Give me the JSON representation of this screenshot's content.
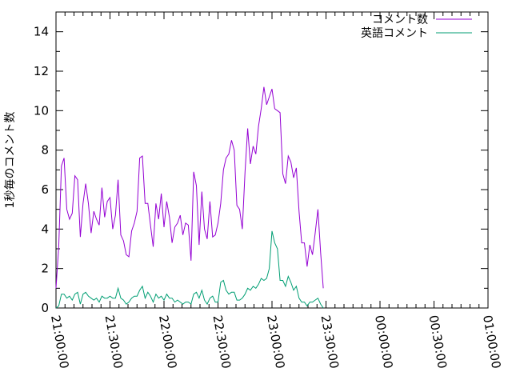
{
  "chart_data": {
    "type": "line",
    "title": "",
    "xlabel": "",
    "ylabel": "1秒毎のコメント数",
    "ylim": [
      0,
      15
    ],
    "xlim": [
      "21:00:00",
      "01:00:00"
    ],
    "x_ticks": [
      "21:00:00",
      "21:30:00",
      "22:00:00",
      "22:30:00",
      "23:00:00",
      "23:30:00",
      "00:00:00",
      "00:30:00",
      "01:00:00"
    ],
    "y_ticks": [
      0,
      2,
      4,
      6,
      8,
      10,
      12,
      14
    ],
    "legend_position": "top-right",
    "grid": false,
    "series": [
      {
        "name": "コメント数",
        "color": "#9400d3",
        "points": [
          [
            "21:00:00",
            1.0
          ],
          [
            "21:01:30",
            3.1
          ],
          [
            "21:03:00",
            7.2
          ],
          [
            "21:04:30",
            7.6
          ],
          [
            "21:06:00",
            5.0
          ],
          [
            "21:07:30",
            4.5
          ],
          [
            "21:09:00",
            4.8
          ],
          [
            "21:10:30",
            6.7
          ],
          [
            "21:12:00",
            6.5
          ],
          [
            "21:13:30",
            3.6
          ],
          [
            "21:15:00",
            5.3
          ],
          [
            "21:16:30",
            6.3
          ],
          [
            "21:18:00",
            5.3
          ],
          [
            "21:19:30",
            3.8
          ],
          [
            "21:21:00",
            4.9
          ],
          [
            "21:22:30",
            4.5
          ],
          [
            "21:24:00",
            4.2
          ],
          [
            "21:25:30",
            6.1
          ],
          [
            "21:27:00",
            4.6
          ],
          [
            "21:28:30",
            5.4
          ],
          [
            "21:30:00",
            5.6
          ],
          [
            "21:31:30",
            4.0
          ],
          [
            "21:33:00",
            4.7
          ],
          [
            "21:34:30",
            6.5
          ],
          [
            "21:36:00",
            3.7
          ],
          [
            "21:37:30",
            3.4
          ],
          [
            "21:39:00",
            2.7
          ],
          [
            "21:40:30",
            2.6
          ],
          [
            "21:42:00",
            3.9
          ],
          [
            "21:43:30",
            4.3
          ],
          [
            "21:45:00",
            4.9
          ],
          [
            "21:46:30",
            7.6
          ],
          [
            "21:48:00",
            7.7
          ],
          [
            "21:49:30",
            5.3
          ],
          [
            "21:51:00",
            5.3
          ],
          [
            "21:52:30",
            4.2
          ],
          [
            "21:54:00",
            3.1
          ],
          [
            "21:55:30",
            5.3
          ],
          [
            "21:57:00",
            4.5
          ],
          [
            "21:58:30",
            5.8
          ],
          [
            "22:00:00",
            4.1
          ],
          [
            "22:01:30",
            5.4
          ],
          [
            "22:03:00",
            4.6
          ],
          [
            "22:04:30",
            3.3
          ],
          [
            "22:06:00",
            4.1
          ],
          [
            "22:07:30",
            4.3
          ],
          [
            "22:09:00",
            4.7
          ],
          [
            "22:10:30",
            3.7
          ],
          [
            "22:12:00",
            4.3
          ],
          [
            "22:13:30",
            4.2
          ],
          [
            "22:15:00",
            2.4
          ],
          [
            "22:16:30",
            6.9
          ],
          [
            "22:18:00",
            6.2
          ],
          [
            "22:19:30",
            3.2
          ],
          [
            "22:21:00",
            5.9
          ],
          [
            "22:22:30",
            4.0
          ],
          [
            "22:24:00",
            3.5
          ],
          [
            "22:25:30",
            5.4
          ],
          [
            "22:27:00",
            3.6
          ],
          [
            "22:28:30",
            3.7
          ],
          [
            "22:30:00",
            4.3
          ],
          [
            "22:31:30",
            5.3
          ],
          [
            "22:33:00",
            7.0
          ],
          [
            "22:34:30",
            7.6
          ],
          [
            "22:36:00",
            7.8
          ],
          [
            "22:37:30",
            8.5
          ],
          [
            "22:39:00",
            8.0
          ],
          [
            "22:40:30",
            5.2
          ],
          [
            "22:42:00",
            5.0
          ],
          [
            "22:43:30",
            4.0
          ],
          [
            "22:45:00",
            6.9
          ],
          [
            "22:46:30",
            9.1
          ],
          [
            "22:48:00",
            7.3
          ],
          [
            "22:49:30",
            8.2
          ],
          [
            "22:51:00",
            7.8
          ],
          [
            "22:52:30",
            9.2
          ],
          [
            "22:54:00",
            10.1
          ],
          [
            "22:55:30",
            11.2
          ],
          [
            "22:57:00",
            10.3
          ],
          [
            "22:58:30",
            10.7
          ],
          [
            "23:00:00",
            11.1
          ],
          [
            "23:01:30",
            10.1
          ],
          [
            "23:03:00",
            10.0
          ],
          [
            "23:04:30",
            9.9
          ],
          [
            "23:06:00",
            6.8
          ],
          [
            "23:07:30",
            6.3
          ],
          [
            "23:09:00",
            7.7
          ],
          [
            "23:10:30",
            7.4
          ],
          [
            "23:12:00",
            6.6
          ],
          [
            "23:13:30",
            7.1
          ],
          [
            "23:15:00",
            4.9
          ],
          [
            "23:16:30",
            3.3
          ],
          [
            "23:18:00",
            3.3
          ],
          [
            "23:19:30",
            2.1
          ],
          [
            "23:21:00",
            3.2
          ],
          [
            "23:22:30",
            2.7
          ],
          [
            "23:24:00",
            3.8
          ],
          [
            "23:25:30",
            5.0
          ],
          [
            "23:27:00",
            2.8
          ],
          [
            "23:28:30",
            1.0
          ]
        ]
      },
      {
        "name": "英語コメント",
        "color": "#009e73",
        "points": [
          [
            "21:00:00",
            0.0
          ],
          [
            "21:01:30",
            0.1
          ],
          [
            "21:03:00",
            0.7
          ],
          [
            "21:04:30",
            0.7
          ],
          [
            "21:06:00",
            0.5
          ],
          [
            "21:07:30",
            0.6
          ],
          [
            "21:09:00",
            0.4
          ],
          [
            "21:10:30",
            0.7
          ],
          [
            "21:12:00",
            0.8
          ],
          [
            "21:13:30",
            0.2
          ],
          [
            "21:15:00",
            0.7
          ],
          [
            "21:16:30",
            0.8
          ],
          [
            "21:18:00",
            0.6
          ],
          [
            "21:19:30",
            0.5
          ],
          [
            "21:21:00",
            0.4
          ],
          [
            "21:22:30",
            0.5
          ],
          [
            "21:24:00",
            0.3
          ],
          [
            "21:25:30",
            0.6
          ],
          [
            "21:27:00",
            0.5
          ],
          [
            "21:28:30",
            0.5
          ],
          [
            "21:30:00",
            0.6
          ],
          [
            "21:31:30",
            0.5
          ],
          [
            "21:33:00",
            0.5
          ],
          [
            "21:34:30",
            1.0
          ],
          [
            "21:36:00",
            0.5
          ],
          [
            "21:37:30",
            0.4
          ],
          [
            "21:39:00",
            0.2
          ],
          [
            "21:40:30",
            0.3
          ],
          [
            "21:42:00",
            0.5
          ],
          [
            "21:43:30",
            0.6
          ],
          [
            "21:45:00",
            0.6
          ],
          [
            "21:46:30",
            0.9
          ],
          [
            "21:48:00",
            1.1
          ],
          [
            "21:49:30",
            0.5
          ],
          [
            "21:51:00",
            0.8
          ],
          [
            "21:52:30",
            0.6
          ],
          [
            "21:54:00",
            0.3
          ],
          [
            "21:55:30",
            0.7
          ],
          [
            "21:57:00",
            0.5
          ],
          [
            "21:58:30",
            0.6
          ],
          [
            "22:00:00",
            0.4
          ],
          [
            "22:01:30",
            0.7
          ],
          [
            "22:03:00",
            0.5
          ],
          [
            "22:04:30",
            0.5
          ],
          [
            "22:06:00",
            0.3
          ],
          [
            "22:07:30",
            0.4
          ],
          [
            "22:09:00",
            0.3
          ],
          [
            "22:10:30",
            0.2
          ],
          [
            "22:12:00",
            0.3
          ],
          [
            "22:13:30",
            0.3
          ],
          [
            "22:15:00",
            0.2
          ],
          [
            "22:16:30",
            0.7
          ],
          [
            "22:18:00",
            0.8
          ],
          [
            "22:19:30",
            0.5
          ],
          [
            "22:21:00",
            0.9
          ],
          [
            "22:22:30",
            0.4
          ],
          [
            "22:24:00",
            0.2
          ],
          [
            "22:25:30",
            0.5
          ],
          [
            "22:27:00",
            0.6
          ],
          [
            "22:28:30",
            0.3
          ],
          [
            "22:30:00",
            0.3
          ],
          [
            "22:31:30",
            1.3
          ],
          [
            "22:33:00",
            1.4
          ],
          [
            "22:34:30",
            0.9
          ],
          [
            "22:36:00",
            0.7
          ],
          [
            "22:37:30",
            0.8
          ],
          [
            "22:39:00",
            0.8
          ],
          [
            "22:40:30",
            0.4
          ],
          [
            "22:42:00",
            0.4
          ],
          [
            "22:43:30",
            0.5
          ],
          [
            "22:45:00",
            0.7
          ],
          [
            "22:46:30",
            1.0
          ],
          [
            "22:48:00",
            0.9
          ],
          [
            "22:49:30",
            1.1
          ],
          [
            "22:51:00",
            1.0
          ],
          [
            "22:52:30",
            1.2
          ],
          [
            "22:54:00",
            1.5
          ],
          [
            "22:55:30",
            1.4
          ],
          [
            "22:57:00",
            1.5
          ],
          [
            "22:58:30",
            2.0
          ],
          [
            "23:00:00",
            3.9
          ],
          [
            "23:01:30",
            3.3
          ],
          [
            "23:03:00",
            3.0
          ],
          [
            "23:04:30",
            1.4
          ],
          [
            "23:06:00",
            1.4
          ],
          [
            "23:07:30",
            1.1
          ],
          [
            "23:09:00",
            1.6
          ],
          [
            "23:10:30",
            1.3
          ],
          [
            "23:12:00",
            0.9
          ],
          [
            "23:13:30",
            1.1
          ],
          [
            "23:15:00",
            0.5
          ],
          [
            "23:16:30",
            0.3
          ],
          [
            "23:18:00",
            0.3
          ],
          [
            "23:19:30",
            0.1
          ],
          [
            "23:21:00",
            0.3
          ],
          [
            "23:22:30",
            0.3
          ],
          [
            "23:24:00",
            0.4
          ],
          [
            "23:25:30",
            0.5
          ],
          [
            "23:27:00",
            0.2
          ],
          [
            "23:28:30",
            0.0
          ]
        ]
      }
    ]
  }
}
